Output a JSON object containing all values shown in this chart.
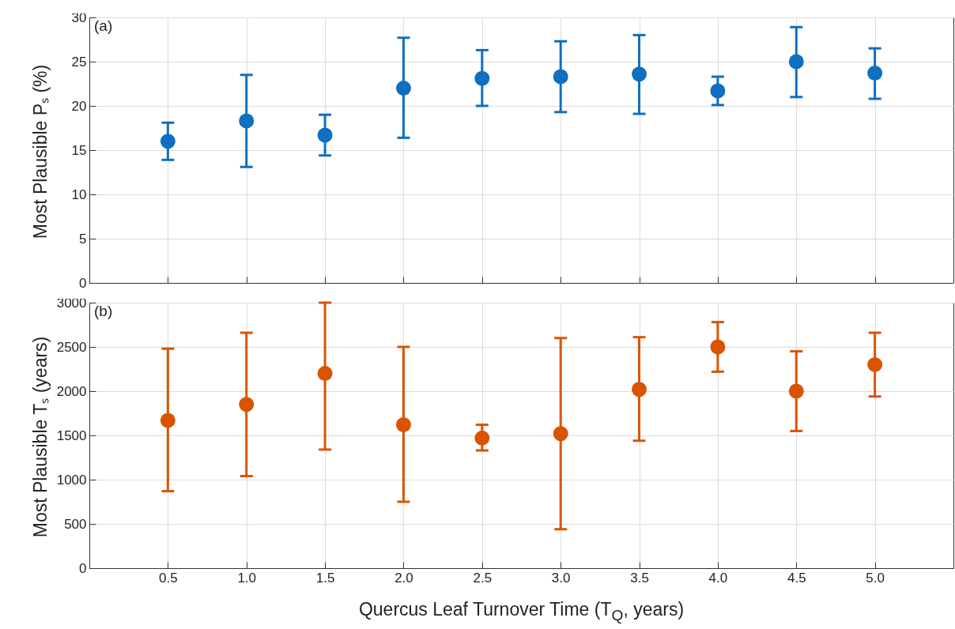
{
  "chart_data": [
    {
      "type": "scatter",
      "ylabel": "Most Plausible Pₛ (%)",
      "annotations": [
        "(a)"
      ],
      "x": [
        0.5,
        1.0,
        1.5,
        2.0,
        2.5,
        3.0,
        3.5,
        4.0,
        4.5,
        5.0
      ],
      "values": [
        16.0,
        18.3,
        16.7,
        22.0,
        23.1,
        23.3,
        23.6,
        21.7,
        25.0,
        23.7
      ],
      "errors": [
        [
          13.9,
          18.1
        ],
        [
          13.1,
          23.5
        ],
        [
          14.4,
          19.0
        ],
        [
          16.4,
          27.7
        ],
        [
          20.0,
          26.3
        ],
        [
          19.3,
          27.3
        ],
        [
          19.1,
          28.0
        ],
        [
          20.1,
          23.3
        ],
        [
          21.0,
          28.9
        ],
        [
          20.8,
          26.5
        ]
      ],
      "color": "#0f6fc0",
      "marker": "circle",
      "xlim": [
        0,
        5.5
      ],
      "xticks": [
        0.5,
        1,
        1.5,
        2,
        2.5,
        3,
        3.5,
        4,
        4.5,
        5
      ],
      "ylim": [
        0,
        30
      ],
      "yticks": [
        0,
        5,
        10,
        15,
        20,
        25,
        30
      ],
      "grid": true,
      "tick_labels": "y"
    },
    {
      "type": "scatter",
      "ylabel": "Most Plausible Tₛ (years)",
      "xlabel": "Quercus Leaf Turnover Time (T$_{Q}$, years)",
      "annotations": [
        "(b)"
      ],
      "x": [
        0.5,
        1.0,
        1.5,
        2.0,
        2.5,
        3.0,
        3.5,
        4.0,
        4.5,
        5.0
      ],
      "values": [
        1670,
        1850,
        2200,
        1620,
        1470,
        1520,
        2020,
        2500,
        2000,
        2300
      ],
      "errors": [
        [
          870,
          2480
        ],
        [
          1040,
          2660
        ],
        [
          1340,
          3000
        ],
        [
          750,
          2500
        ],
        [
          1330,
          1620
        ],
        [
          440,
          2600
        ],
        [
          1440,
          2610
        ],
        [
          2220,
          2780
        ],
        [
          1550,
          2450
        ],
        [
          1940,
          2660
        ]
      ],
      "color": "#d95400",
      "marker": "circle",
      "xlim": [
        0,
        5.5
      ],
      "xticks": [
        {
          "value": 0.5,
          "label": "0.5"
        },
        {
          "value": 1,
          "label": "1.0"
        },
        {
          "value": 1.5,
          "label": "1.5"
        },
        {
          "value": 2,
          "label": "2.0"
        },
        {
          "value": 2.5,
          "label": "2.5"
        },
        {
          "value": 3,
          "label": "3.0"
        },
        {
          "value": 3.5,
          "label": "3.5"
        },
        {
          "value": 4,
          "label": "4.0"
        },
        {
          "value": 4.5,
          "label": "4.5"
        },
        {
          "value": 5,
          "label": "5.0"
        }
      ],
      "ylim": [
        0,
        3000
      ],
      "yticks": [
        0,
        500,
        1000,
        1500,
        2000,
        2500,
        3000
      ],
      "grid": true
    }
  ]
}
